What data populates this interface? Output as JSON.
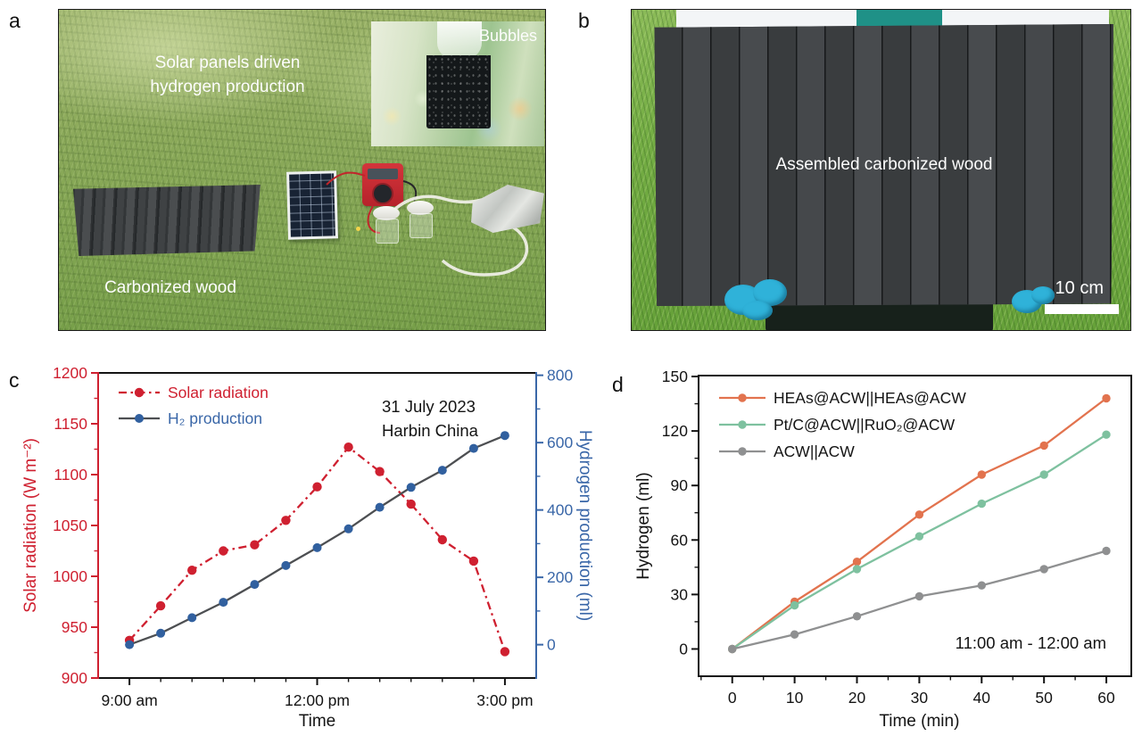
{
  "panels": {
    "a": {
      "label": "a",
      "caption_line1": "Solar panels driven",
      "caption_line2": "hydrogen production",
      "inset_label": "Bubbles",
      "wood_label": "Carbonized wood"
    },
    "b": {
      "label": "b",
      "caption": "Assembled carbonized wood",
      "scale_bar_label": "10 cm"
    },
    "c": {
      "label": "c"
    },
    "d": {
      "label": "d"
    }
  },
  "chart_data": [
    {
      "id": "c",
      "type": "line",
      "panel_label": "c",
      "xlabel": "Time",
      "xlim": [
        8.5,
        15.5
      ],
      "x_ticks": [
        {
          "v": 9,
          "label": "9:00 am"
        },
        {
          "v": 12,
          "label": "12:00 pm"
        },
        {
          "v": 15,
          "label": "3:00 pm"
        }
      ],
      "x_minor_step": 0.5,
      "axes": {
        "left": {
          "label": "Solar radiation (W m⁻²)",
          "color": "#cf2030",
          "lim": [
            900,
            1200
          ],
          "ticks": [
            900,
            950,
            1000,
            1050,
            1100,
            1150,
            1200
          ],
          "minor_step": 25
        },
        "right": {
          "label": "Hydrogen production  (ml)",
          "color": "#3a67a8",
          "lim": [
            -99,
            807
          ],
          "ticks": [
            0,
            200,
            400,
            600,
            800
          ],
          "minor_step": 100
        }
      },
      "spine_colors": {
        "top": "#141414",
        "bottom": "#141414",
        "left": "#cf2030",
        "right": "#3a67a8"
      },
      "x": [
        9,
        9.5,
        10,
        10.5,
        11,
        11.5,
        12,
        12.5,
        13,
        13.5,
        14,
        14.5,
        15
      ],
      "series": [
        {
          "name": "Solar radiation",
          "axis": "left",
          "line_color": "#cf2030",
          "marker_color": "#cf2030",
          "dash": "9 4.5 2.5 4.5",
          "values": [
            937,
            971,
            1006,
            1025,
            1031,
            1055,
            1088,
            1127,
            1103,
            1071,
            1036,
            1015,
            926
          ]
        },
        {
          "name": "H₂ production",
          "axis": "right",
          "line_color": "#4d4f52",
          "marker_color": "#31609f",
          "dash": null,
          "values": [
            0,
            34,
            80,
            126,
            179,
            235,
            288,
            344,
            408,
            467,
            518,
            583,
            621
          ]
        }
      ],
      "legend": [
        {
          "label": "Solar radiation",
          "text_color": "#cf2030",
          "line_color": "#cf2030",
          "marker_color": "#cf2030",
          "dash": "9 4.5 2.5 4.5"
        },
        {
          "label": "H₂ production",
          "text_color": "#3a67a8",
          "line_color": "#4d4f52",
          "marker_color": "#31609f",
          "dash": null
        }
      ],
      "annotation": {
        "lines": [
          "31 July 2023",
          "Harbin China"
        ],
        "color": "#141414"
      }
    },
    {
      "id": "d",
      "type": "line",
      "panel_label": "d",
      "xlabel": "Time (min)",
      "xlim": [
        -5.4,
        64
      ],
      "x_ticks": [
        {
          "v": 0,
          "label": "0"
        },
        {
          "v": 10,
          "label": "10"
        },
        {
          "v": 20,
          "label": "20"
        },
        {
          "v": 30,
          "label": "30"
        },
        {
          "v": 40,
          "label": "40"
        },
        {
          "v": 50,
          "label": "50"
        },
        {
          "v": 60,
          "label": "60"
        }
      ],
      "x_minor_step": 5,
      "axes": {
        "left": {
          "label": "Hydrogen (ml)",
          "color": "#141414",
          "lim": [
            -15,
            150.5
          ],
          "ticks": [
            0,
            30,
            60,
            90,
            120,
            150
          ],
          "minor_step": 15
        }
      },
      "spine_colors": {
        "top": "#141414",
        "bottom": "#141414",
        "left": "#141414",
        "right": "#141414"
      },
      "x": [
        0,
        10,
        20,
        30,
        40,
        50,
        60
      ],
      "series": [
        {
          "name": "HEAs@ACW||HEAs@ACW",
          "axis": "left",
          "line_color": "#e2734e",
          "marker_color": "#e2734e",
          "dash": null,
          "values": [
            0,
            26,
            48,
            74,
            96,
            112,
            138
          ]
        },
        {
          "name": "Pt/C@ACW||RuO₂@ACW",
          "axis": "left",
          "line_color": "#7ec19f",
          "marker_color": "#7ec19f",
          "dash": null,
          "values": [
            0,
            24,
            44,
            62,
            80,
            96,
            118
          ]
        },
        {
          "name": "ACW||ACW",
          "axis": "left",
          "line_color": "#8f9091",
          "marker_color": "#8f9091",
          "dash": null,
          "values": [
            0,
            8,
            18,
            29,
            35,
            44,
            54
          ]
        }
      ],
      "legend": [
        {
          "label": "HEAs@ACW||HEAs@ACW",
          "text_color": "#141414",
          "line_color": "#e2734e",
          "marker_color": "#e2734e",
          "dash": null
        },
        {
          "label": "Pt/C@ACW||RuO₂@ACW",
          "text_color": "#141414",
          "line_color": "#7ec19f",
          "marker_color": "#7ec19f",
          "dash": null
        },
        {
          "label": "ACW||ACW",
          "text_color": "#141414",
          "line_color": "#8f9091",
          "marker_color": "#8f9091",
          "dash": null
        }
      ],
      "annotation": {
        "lines": [
          "11:00 am - 12:00 am"
        ],
        "color": "#141414"
      }
    }
  ]
}
